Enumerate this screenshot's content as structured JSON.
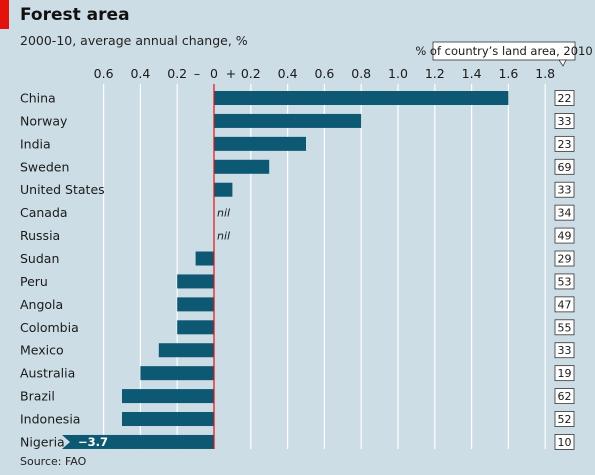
{
  "header": {
    "title": "Forest area",
    "subtitle": "2000-10, average annual change, %"
  },
  "footer": {
    "source": "Source: FAO"
  },
  "colors": {
    "bar": "#0d5872",
    "zero_line": "#e3120b",
    "grid": "#ffffff",
    "background": "#cddde6",
    "accent": "#e3120b"
  },
  "chart_data": {
    "type": "bar",
    "orientation": "horizontal",
    "title": "Forest area",
    "subtitle": "2000-10, average annual change, %",
    "xlim": [
      -0.6,
      1.8
    ],
    "x_ticks": [
      {
        "value": -0.6,
        "label": "0.6"
      },
      {
        "value": -0.4,
        "label": "0.4"
      },
      {
        "value": -0.2,
        "label": "0.2"
      },
      {
        "value": 0,
        "label": "0"
      },
      {
        "value": 0.2,
        "label": "0.2"
      },
      {
        "value": 0.4,
        "label": "0.4"
      },
      {
        "value": 0.6,
        "label": "0.6"
      },
      {
        "value": 0.8,
        "label": "0.8"
      },
      {
        "value": 1.0,
        "label": "1.0"
      },
      {
        "value": 1.2,
        "label": "1.2"
      },
      {
        "value": 1.4,
        "label": "1.4"
      },
      {
        "value": 1.6,
        "label": "1.6"
      },
      {
        "value": 1.8,
        "label": "1.8"
      }
    ],
    "sign_labels": {
      "minus": "–",
      "plus": "+"
    },
    "grid": true,
    "categories": [
      "China",
      "Norway",
      "India",
      "Sweden",
      "United States",
      "Canada",
      "Russia",
      "Sudan",
      "Peru",
      "Angola",
      "Colombia",
      "Mexico",
      "Australia",
      "Brazil",
      "Indonesia",
      "Nigeria"
    ],
    "values": [
      1.6,
      0.8,
      0.5,
      0.3,
      0.1,
      0,
      0,
      -0.1,
      -0.2,
      -0.2,
      -0.2,
      -0.3,
      -0.4,
      -0.5,
      -0.5,
      -3.7
    ],
    "value_labels": [
      "",
      "",
      "",
      "",
      "",
      "nil",
      "nil",
      "",
      "",
      "",
      "",
      "",
      "",
      "",
      "",
      "−3.7"
    ],
    "land_share_label": "% of country’s land area, 2010",
    "land_share": [
      "22",
      "33",
      "23",
      "69",
      "33",
      "34",
      "49",
      "29",
      "53",
      "47",
      "55",
      "33",
      "19",
      "62",
      "52",
      "10"
    ]
  }
}
